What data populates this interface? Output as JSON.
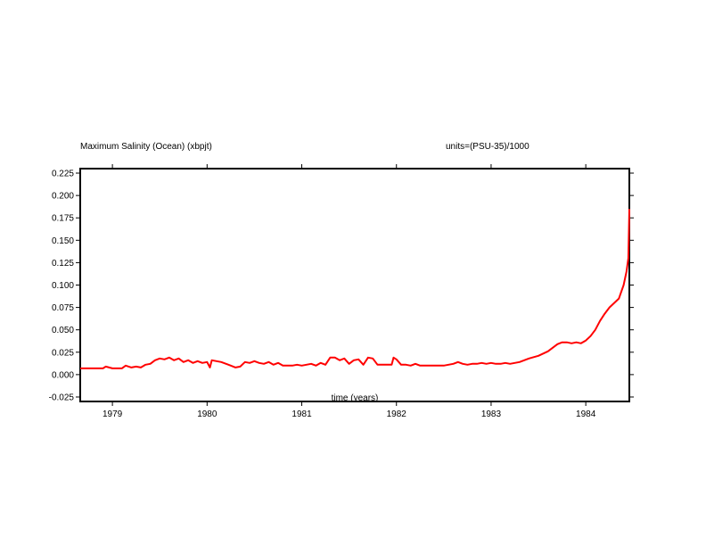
{
  "chart_data": {
    "type": "line",
    "title": "Maximum Salinity (Ocean) (xbpjt)",
    "units": "units=(PSU-35)/1000",
    "xlabel": "time (years)",
    "ylabel": "",
    "xlim": [
      1978.66,
      1984.46
    ],
    "ylim": [
      -0.03,
      0.23
    ],
    "x_ticks": [
      1979,
      1980,
      1981,
      1982,
      1983,
      1984
    ],
    "x_tick_labels": [
      "1979",
      "1980",
      "1981",
      "1982",
      "1983",
      "1984"
    ],
    "y_ticks": [
      -0.025,
      0.0,
      0.025,
      0.05,
      0.075,
      0.1,
      0.125,
      0.15,
      0.175,
      0.2,
      0.225
    ],
    "y_tick_labels": [
      "-0.025",
      "0.000",
      "0.025",
      "0.050",
      "0.075",
      "0.100",
      "0.125",
      "0.150",
      "0.175",
      "0.200",
      "0.225"
    ],
    "grid": false,
    "line_color": "#ff0000",
    "series": [
      {
        "x": [
          1978.66,
          1978.8,
          1978.9,
          1978.93,
          1979.0,
          1979.1,
          1979.14,
          1979.2,
          1979.25,
          1979.3,
          1979.35,
          1979.4,
          1979.45,
          1979.5,
          1979.55,
          1979.6,
          1979.65,
          1979.7,
          1979.75,
          1979.8,
          1979.85,
          1979.9,
          1979.95,
          1980.0,
          1980.03,
          1980.05,
          1980.1,
          1980.15,
          1980.2,
          1980.25,
          1980.3,
          1980.35,
          1980.4,
          1980.45,
          1980.5,
          1980.55,
          1980.6,
          1980.65,
          1980.7,
          1980.75,
          1980.8,
          1980.85,
          1980.9,
          1980.95,
          1981.0,
          1981.05,
          1981.1,
          1981.15,
          1981.2,
          1981.25,
          1981.3,
          1981.35,
          1981.4,
          1981.45,
          1981.5,
          1981.55,
          1981.6,
          1981.65,
          1981.7,
          1981.75,
          1981.8,
          1981.85,
          1981.9,
          1981.95,
          1981.97,
          1982.0,
          1982.05,
          1982.1,
          1982.15,
          1982.2,
          1982.25,
          1982.3,
          1982.4,
          1982.5,
          1982.6,
          1982.65,
          1982.7,
          1982.75,
          1982.8,
          1982.85,
          1982.9,
          1982.95,
          1983.0,
          1983.05,
          1983.1,
          1983.15,
          1983.2,
          1983.3,
          1983.4,
          1983.5,
          1983.6,
          1983.65,
          1983.7,
          1983.75,
          1983.8,
          1983.85,
          1983.9,
          1983.95,
          1984.0,
          1984.05,
          1984.1,
          1984.15,
          1984.2,
          1984.25,
          1984.3,
          1984.35,
          1984.4,
          1984.43,
          1984.45,
          1984.46
        ],
        "y": [
          0.007,
          0.007,
          0.007,
          0.009,
          0.007,
          0.007,
          0.01,
          0.008,
          0.009,
          0.008,
          0.011,
          0.012,
          0.016,
          0.018,
          0.017,
          0.019,
          0.016,
          0.018,
          0.014,
          0.016,
          0.013,
          0.015,
          0.013,
          0.014,
          0.008,
          0.016,
          0.015,
          0.014,
          0.012,
          0.01,
          0.008,
          0.009,
          0.014,
          0.013,
          0.015,
          0.013,
          0.012,
          0.014,
          0.011,
          0.013,
          0.01,
          0.01,
          0.01,
          0.011,
          0.01,
          0.011,
          0.012,
          0.01,
          0.013,
          0.011,
          0.019,
          0.019,
          0.016,
          0.018,
          0.012,
          0.016,
          0.017,
          0.011,
          0.019,
          0.018,
          0.011,
          0.011,
          0.011,
          0.011,
          0.019,
          0.017,
          0.011,
          0.011,
          0.01,
          0.012,
          0.01,
          0.01,
          0.01,
          0.01,
          0.012,
          0.014,
          0.012,
          0.011,
          0.012,
          0.012,
          0.013,
          0.012,
          0.013,
          0.012,
          0.012,
          0.013,
          0.012,
          0.014,
          0.018,
          0.021,
          0.026,
          0.03,
          0.034,
          0.036,
          0.036,
          0.035,
          0.036,
          0.035,
          0.038,
          0.043,
          0.05,
          0.06,
          0.068,
          0.075,
          0.08,
          0.085,
          0.1,
          0.115,
          0.13,
          0.185
        ]
      }
    ]
  }
}
